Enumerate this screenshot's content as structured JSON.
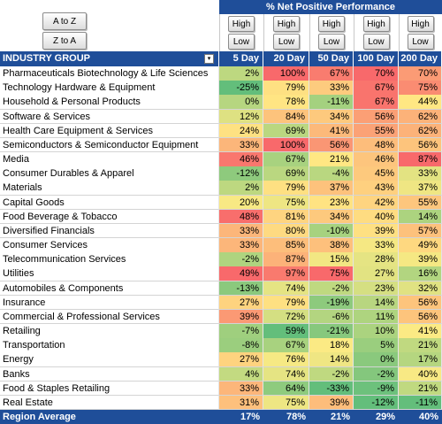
{
  "header": {
    "title": "% Net Positive Performance"
  },
  "sort_buttons": [
    "A to Z",
    "Z to A"
  ],
  "column_buttons": [
    [
      "High",
      "Low"
    ],
    [
      "High",
      "Low"
    ],
    [
      "High",
      "Low"
    ],
    [
      "High",
      "Low"
    ],
    [
      "High",
      "Low"
    ]
  ],
  "table": {
    "columns": [
      "INDUSTRY GROUP",
      "5 Day",
      "20 Day",
      "50 Day",
      "100 Day",
      "200 Day"
    ],
    "rows": [
      [
        "Pharmaceuticals Biotechnology & Life Sciences",
        "2%",
        "100%",
        "67%",
        "70%",
        "70%"
      ],
      [
        "Technology Hardware & Equipment",
        "-25%",
        "79%",
        "33%",
        "67%",
        "75%"
      ],
      [
        "Household & Personal Products",
        "0%",
        "78%",
        "-11%",
        "67%",
        "44%"
      ],
      [
        "Software & Services",
        "12%",
        "84%",
        "34%",
        "56%",
        "62%"
      ],
      [
        "Health Care Equipment & Services",
        "24%",
        "69%",
        "41%",
        "55%",
        "62%"
      ],
      [
        "Semiconductors & Semiconductor Equipment",
        "33%",
        "100%",
        "56%",
        "48%",
        "56%"
      ],
      [
        "Media",
        "46%",
        "67%",
        "21%",
        "46%",
        "87%"
      ],
      [
        "Consumer Durables & Apparel",
        "-12%",
        "69%",
        "-4%",
        "45%",
        "33%"
      ],
      [
        "Materials",
        "2%",
        "79%",
        "37%",
        "43%",
        "37%"
      ],
      [
        "Capital Goods",
        "20%",
        "75%",
        "23%",
        "42%",
        "55%"
      ],
      [
        "Food Beverage & Tobacco",
        "48%",
        "81%",
        "34%",
        "40%",
        "14%"
      ],
      [
        "Diversified Financials",
        "33%",
        "80%",
        "-10%",
        "39%",
        "57%"
      ],
      [
        "Consumer Services",
        "33%",
        "85%",
        "38%",
        "33%",
        "49%"
      ],
      [
        "Telecommunication Services",
        "-2%",
        "87%",
        "15%",
        "28%",
        "39%"
      ],
      [
        "Utilities",
        "49%",
        "97%",
        "75%",
        "27%",
        "16%"
      ],
      [
        "Automobiles & Components",
        "-13%",
        "74%",
        "-2%",
        "23%",
        "32%"
      ],
      [
        "Insurance",
        "27%",
        "79%",
        "-19%",
        "14%",
        "56%"
      ],
      [
        "Commercial & Professional Services",
        "39%",
        "72%",
        "-6%",
        "11%",
        "56%"
      ],
      [
        "Retailing",
        "-7%",
        "59%",
        "-21%",
        "10%",
        "41%"
      ],
      [
        "Transportation",
        "-8%",
        "67%",
        "18%",
        "5%",
        "21%"
      ],
      [
        "Energy",
        "27%",
        "76%",
        "14%",
        "0%",
        "17%"
      ],
      [
        "Banks",
        "4%",
        "74%",
        "-2%",
        "-2%",
        "40%"
      ],
      [
        "Food & Staples Retailing",
        "33%",
        "64%",
        "-33%",
        "-9%",
        "21%"
      ],
      [
        "Real Estate",
        "31%",
        "75%",
        "39%",
        "-12%",
        "-11%"
      ]
    ],
    "footer": [
      "Region Average",
      "17%",
      "78%",
      "21%",
      "29%",
      "40%"
    ]
  }
}
